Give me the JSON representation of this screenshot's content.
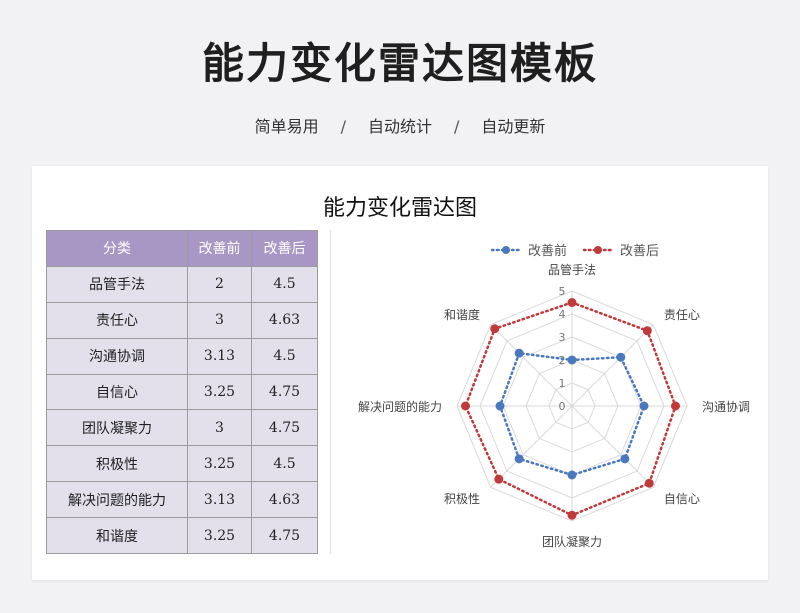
{
  "header": {
    "title": "能力变化雷达图模板",
    "tags": [
      "简单易用",
      "自动统计",
      "自动更新"
    ],
    "separator": "/"
  },
  "card": {
    "title": "能力变化雷达图"
  },
  "table": {
    "headers": [
      "分类",
      "改善前",
      "改善后"
    ],
    "rows": [
      [
        "品管手法",
        "2",
        "4.5"
      ],
      [
        "责任心",
        "3",
        "4.63"
      ],
      [
        "沟通协调",
        "3.13",
        "4.5"
      ],
      [
        "自信心",
        "3.25",
        "4.75"
      ],
      [
        "团队凝聚力",
        "3",
        "4.75"
      ],
      [
        "积极性",
        "3.25",
        "4.5"
      ],
      [
        "解决问题的能力",
        "3.13",
        "4.63"
      ],
      [
        "和谐度",
        "3.25",
        "4.75"
      ]
    ]
  },
  "chart_data": {
    "type": "radar",
    "categories": [
      "品管手法",
      "责任心",
      "沟通协调",
      "自信心",
      "团队凝聚力",
      "积极性",
      "解决问题的能力",
      "和谐度"
    ],
    "series": [
      {
        "name": "改善前",
        "values": [
          2,
          3,
          3.13,
          3.25,
          3,
          3.25,
          3.13,
          3.25
        ],
        "color": "#4a78bf"
      },
      {
        "name": "改善后",
        "values": [
          4.5,
          4.63,
          4.5,
          4.75,
          4.75,
          4.5,
          4.63,
          4.75
        ],
        "color": "#c0393b"
      }
    ],
    "rlim": [
      0,
      5
    ],
    "ticks": [
      0,
      1,
      2,
      3,
      4,
      5
    ],
    "grid": true,
    "legend": "top",
    "line_style": "dotted"
  }
}
